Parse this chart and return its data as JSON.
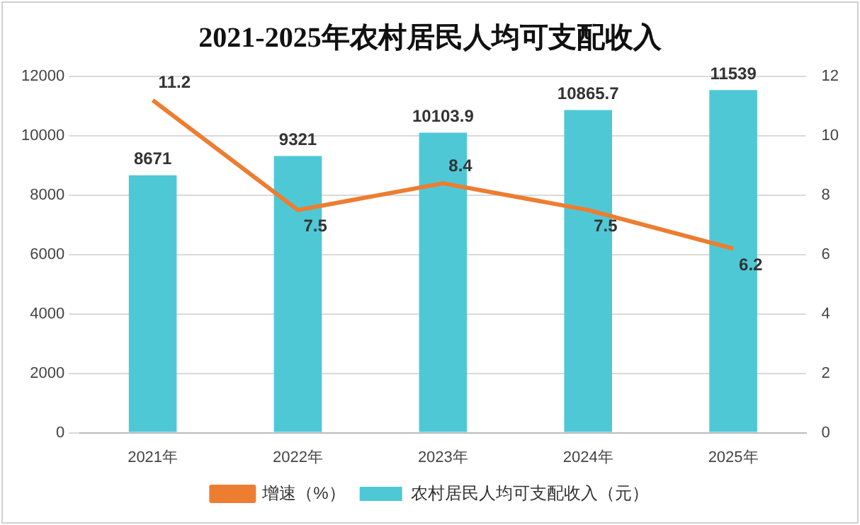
{
  "chart_data": {
    "type": "bar",
    "title": "2021-2025年农村居民人均可支配收入",
    "categories": [
      "2021年",
      "2022年",
      "2023年",
      "2024年",
      "2025年"
    ],
    "series": [
      {
        "name": "农村居民人均可支配收入（元）",
        "color": "#4fc8d6",
        "values": [
          8671,
          9321,
          10103.9,
          10865.7,
          11539
        ]
      },
      {
        "name": "增速（%）",
        "type": "line",
        "axis": "y2",
        "color": "#ed7d31",
        "values": [
          11.2,
          7.5,
          8.4,
          7.5,
          6.2
        ]
      }
    ],
    "ylim": [
      0,
      12000
    ],
    "yticks": [
      0,
      2000,
      4000,
      6000,
      8000,
      10000,
      12000
    ],
    "y2lim": [
      0,
      12
    ],
    "y2ticks": [
      0,
      2,
      4,
      6,
      8,
      10,
      12
    ],
    "grid": "y",
    "legend": "bottom",
    "data_labels": true,
    "marker": "none",
    "line_style": "solid"
  }
}
